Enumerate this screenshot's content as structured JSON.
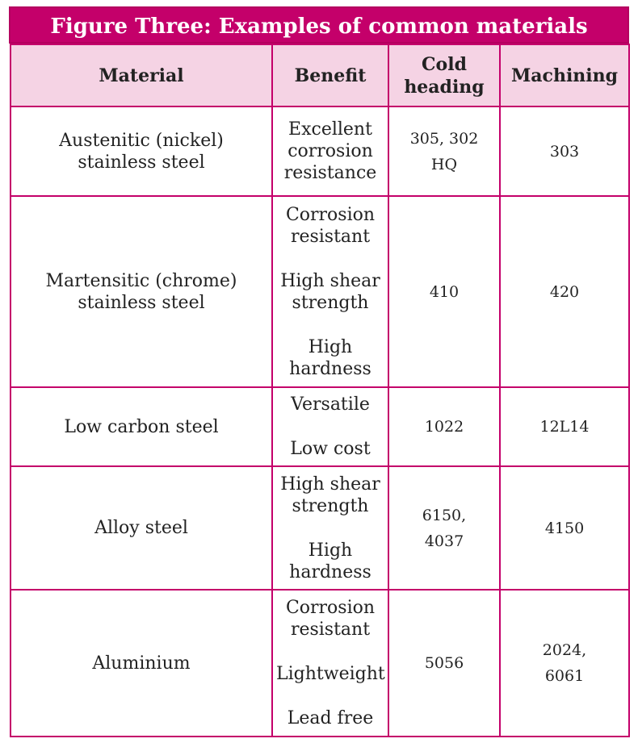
{
  "title": "Figure Three: Examples of common materials",
  "headers": [
    "Material",
    "Benefit",
    "Cold heading",
    "Machining"
  ],
  "rows": [
    {
      "material": "Austenitic (nickel) stainless steel",
      "benefits": [
        "Excellent corrosion resistance"
      ],
      "cold_heading": "305, 302 HQ",
      "machining": "303"
    },
    {
      "material": "Martensitic (chrome) stainless steel",
      "benefits": [
        "Corrosion resistant",
        "High shear strength",
        "High hardness"
      ],
      "cold_heading": "410",
      "machining": "420"
    },
    {
      "material": "Low carbon steel",
      "benefits": [
        "Versatile",
        "Low cost"
      ],
      "cold_heading": "1022",
      "machining": "12L14"
    },
    {
      "material": "Alloy steel",
      "benefits": [
        "High shear strength",
        "High hardness"
      ],
      "cold_heading": "6150, 4037",
      "machining": "4150"
    },
    {
      "material": "Aluminium",
      "benefits": [
        "Corrosion resistant",
        "Lightweight",
        "Lead free"
      ],
      "cold_heading": "5056",
      "machining": "2024, 6061"
    }
  ]
}
